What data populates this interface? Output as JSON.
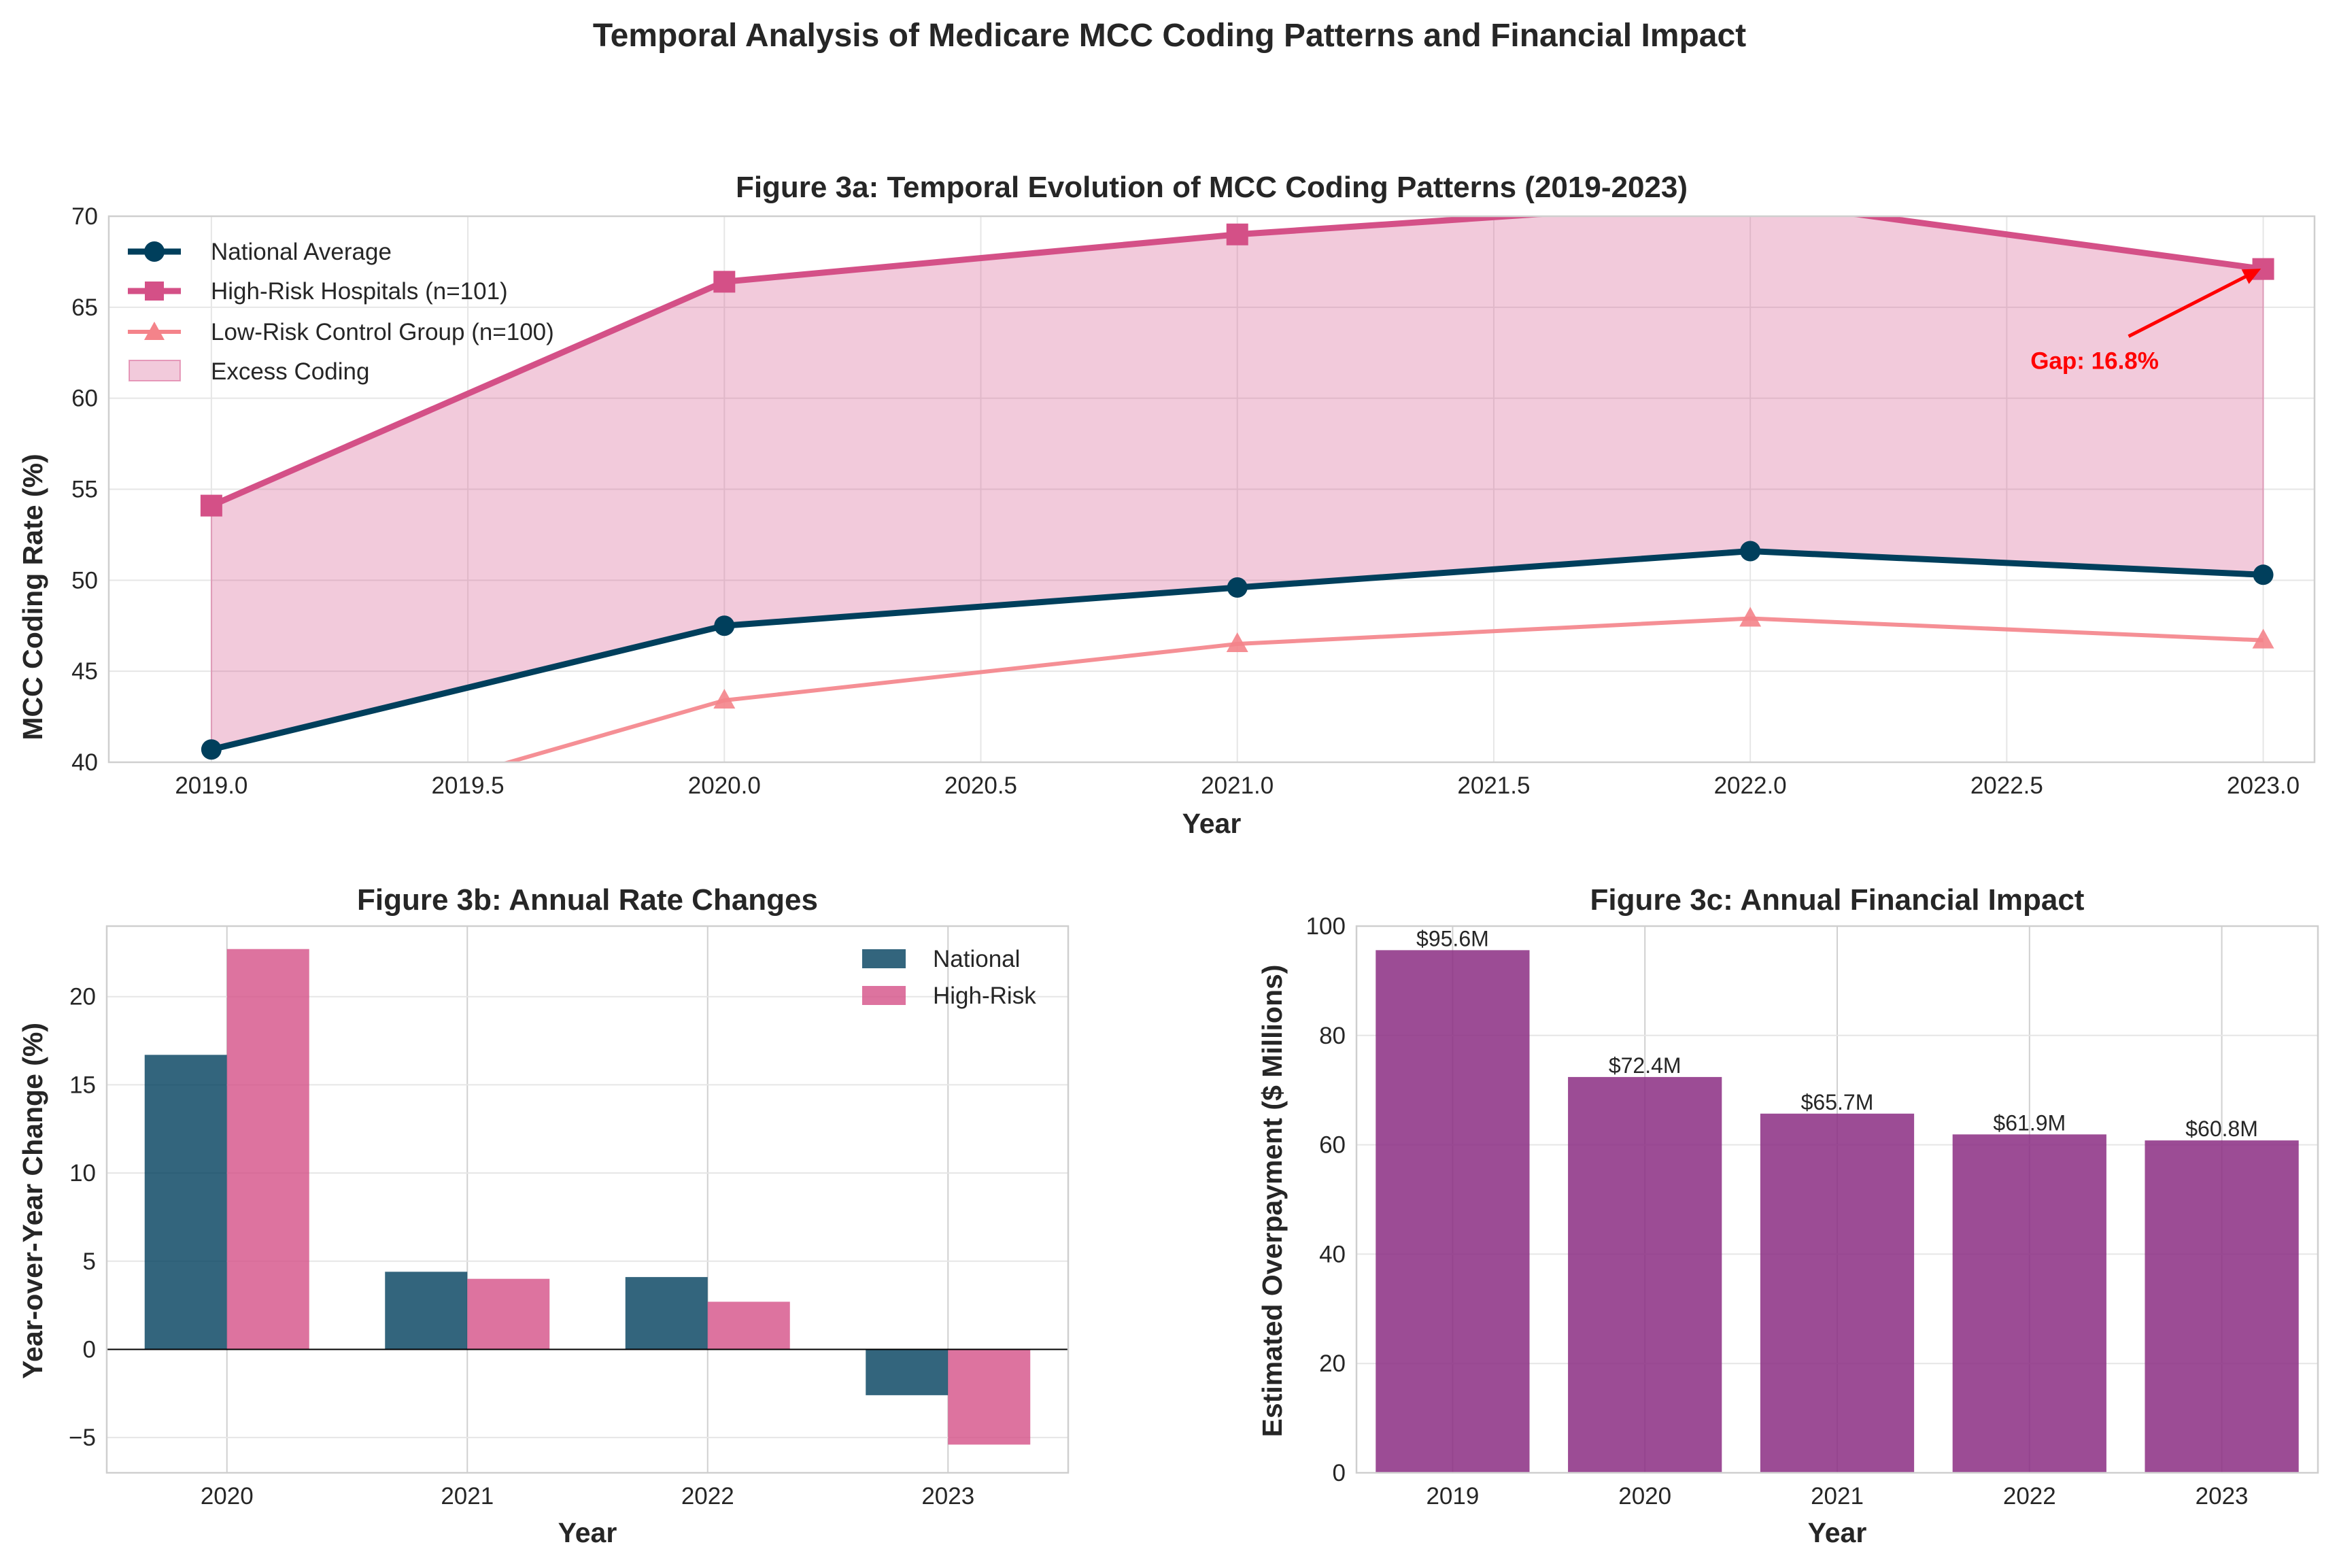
{
  "figure_title": "Temporal Analysis of Medicare MCC Coding Patterns and Financial Impact",
  "colors": {
    "national": "#003f5c",
    "high_risk": "#d45087",
    "low_risk": "#f4838a",
    "excess_fill": "#d45087",
    "financial": "#8b2d82",
    "annotation": "#ff0000"
  },
  "chart_data": [
    {
      "id": "fig3a",
      "type": "line",
      "title": "Figure 3a: Temporal Evolution of MCC Coding Patterns (2019-2023)",
      "xlabel": "Year",
      "ylabel": "MCC Coding Rate (%)",
      "xlim": [
        2018.8,
        2023.1
      ],
      "ylim": [
        40,
        70
      ],
      "xticks": [
        "2019.0",
        "2019.5",
        "2020.0",
        "2020.5",
        "2021.0",
        "2021.5",
        "2022.0",
        "2022.5",
        "2023.0"
      ],
      "yticks": [
        "40",
        "45",
        "50",
        "55",
        "60",
        "65",
        "70"
      ],
      "x": [
        2019,
        2020,
        2021,
        2022,
        2023
      ],
      "series": [
        {
          "name": "National Average",
          "marker": "circle",
          "values": [
            40.7,
            47.5,
            49.6,
            51.6,
            50.3
          ]
        },
        {
          "name": "High-Risk Hospitals (n=101)",
          "marker": "square",
          "values": [
            54.1,
            66.4,
            69.0,
            70.9,
            67.1
          ]
        },
        {
          "name": "Low-Risk Control Group (n=100)",
          "marker": "triangle",
          "values": [
            35.3,
            43.4,
            46.5,
            47.9,
            46.7
          ]
        }
      ],
      "fill_between": {
        "name": "Excess Coding",
        "lower": "National Average",
        "upper": "High-Risk Hospitals (n=101)"
      },
      "legend_position": "top-left",
      "grid": true,
      "annotation": {
        "text": "Gap: 16.8%",
        "x": 2023,
        "y": 67.1
      }
    },
    {
      "id": "fig3b",
      "type": "bar",
      "title": "Figure 3b: Annual Rate Changes",
      "xlabel": "Year",
      "ylabel": "Year-over-Year Change (%)",
      "categories": [
        "2020",
        "2021",
        "2022",
        "2023"
      ],
      "ylim": [
        -7,
        24
      ],
      "yticks": [
        "-5",
        "0",
        "5",
        "10",
        "15",
        "20"
      ],
      "series": [
        {
          "name": "National",
          "values": [
            16.7,
            4.4,
            4.1,
            -2.6
          ]
        },
        {
          "name": "High-Risk",
          "values": [
            22.7,
            4.0,
            2.7,
            -5.4
          ]
        }
      ],
      "legend_position": "top-right",
      "grid": true
    },
    {
      "id": "fig3c",
      "type": "bar",
      "title": "Figure 3c: Annual Financial Impact",
      "xlabel": "Year",
      "ylabel": "Estimated Overpayment ($ Millions)",
      "categories": [
        "2019",
        "2020",
        "2021",
        "2022",
        "2023"
      ],
      "values": [
        95.6,
        72.4,
        65.7,
        61.9,
        60.8
      ],
      "data_labels": [
        "$95.6M",
        "$72.4M",
        "$65.7M",
        "$61.9M",
        "$60.8M"
      ],
      "ylim": [
        0,
        100
      ],
      "yticks": [
        "0",
        "20",
        "40",
        "60",
        "80",
        "100"
      ],
      "grid": true
    }
  ]
}
